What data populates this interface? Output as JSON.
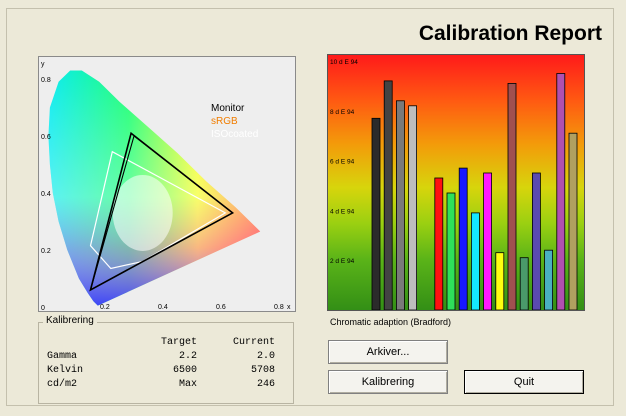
{
  "title": "Calibration Report",
  "gamut": {
    "axis_y_label": "y",
    "axis_x_label": "x",
    "y_ticks": [
      "0.8",
      "0.6",
      "0.4",
      "0.2",
      "0"
    ],
    "x_ticks": [
      "0.2",
      "0.4",
      "0.6",
      "0.8"
    ],
    "legend": [
      {
        "label": "Monitor",
        "color": "#000000"
      },
      {
        "label": "sRGB",
        "color": "#f07d00"
      },
      {
        "label": "ISOcoated",
        "color": "#ffffff"
      }
    ],
    "monitor": [
      [
        0.64,
        0.33
      ],
      [
        0.29,
        0.61
      ],
      [
        0.15,
        0.06
      ]
    ],
    "srgb": [
      [
        0.64,
        0.33
      ],
      [
        0.3,
        0.6
      ],
      [
        0.15,
        0.06
      ]
    ],
    "isocoated": [
      [
        0.615,
        0.33
      ],
      [
        0.225,
        0.545
      ],
      [
        0.15,
        0.215
      ],
      [
        0.22,
        0.135
      ],
      [
        0.33,
        0.16
      ]
    ]
  },
  "chart_data": {
    "type": "bar",
    "ylim": [
      0,
      10
    ],
    "y_tick_labels": [
      "10 d E 94",
      "8 d E 94",
      "6 d E 94",
      "4 d E 94",
      "2 d E 94"
    ],
    "y_tick_values": [
      10,
      8,
      6,
      4,
      2
    ],
    "xlabel": "Chromatic adaption (Bradford)",
    "bars": [
      {
        "value": 7.7,
        "color": "#2b2b2b"
      },
      {
        "value": 9.2,
        "color": "#434343"
      },
      {
        "value": 8.4,
        "color": "#7a7a7a"
      },
      {
        "value": 8.2,
        "color": "#bdbdbd"
      },
      {
        "value": 5.3,
        "color": "#ff1010"
      },
      {
        "value": 4.7,
        "color": "#2ee05a"
      },
      {
        "value": 5.7,
        "color": "#1818ff"
      },
      {
        "value": 3.9,
        "color": "#14e8ff"
      },
      {
        "value": 5.5,
        "color": "#ff18ff"
      },
      {
        "value": 2.3,
        "color": "#ffff10"
      },
      {
        "value": 9.1,
        "color": "#a05050"
      },
      {
        "value": 2.1,
        "color": "#4a9a6a"
      },
      {
        "value": 5.5,
        "color": "#5a4ab0"
      },
      {
        "value": 2.4,
        "color": "#4ab0c0"
      },
      {
        "value": 9.5,
        "color": "#b050b0"
      },
      {
        "value": 7.1,
        "color": "#b0a060"
      }
    ]
  },
  "kalibrering": {
    "title": "Kalibrering",
    "headers": [
      "",
      "Target",
      "Current"
    ],
    "rows": [
      [
        "Gamma",
        "2.2",
        "2.0"
      ],
      [
        "Kelvin",
        "6500",
        "5708"
      ],
      [
        "cd/m2",
        "Max",
        "246"
      ]
    ]
  },
  "buttons": {
    "archive": "Arkiver...",
    "calibrate": "Kalibrering",
    "quit": "Quit"
  }
}
